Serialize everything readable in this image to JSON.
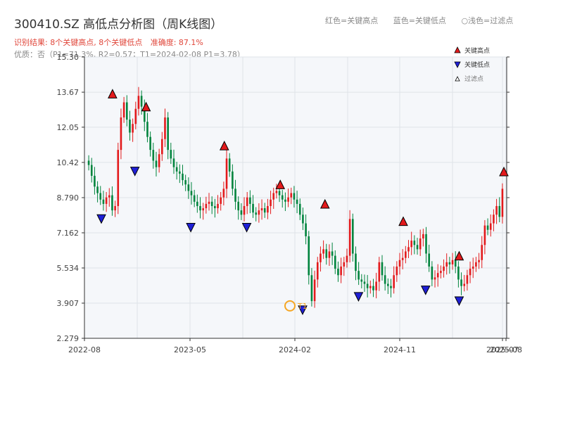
{
  "title": "300410.SZ 高低点分析图（周K线图）",
  "result_summary": "识别结果: 8个关键高点, 8个关键低点",
  "accuracy": "准确度: 87.1%",
  "quality_line": "优质：否（P1=71.3%, R2=0.57；T1=2024-02-08 P1=3.78）",
  "top_legend": {
    "red": "红色=关键高点",
    "blue": "蓝色=关键低点",
    "light": "○浅色=过滤点"
  },
  "colors": {
    "up": "#e31a1c",
    "down": "#00843d",
    "high_marker": "#e31a1c",
    "low_marker": "#1f1fd6",
    "t1_ring": "#f5a623",
    "grid": "#dfe3e8",
    "plot_bg": "#f5f7fa"
  },
  "chart_data": {
    "type": "candlestick",
    "y_ticks": [
      "2.279",
      "3.907",
      "5.534",
      "7.162",
      "8.790",
      "10.42",
      "12.05",
      "13.67",
      "15.30"
    ],
    "ylim": [
      2.279,
      15.3
    ],
    "x_ticks": [
      "2022-08",
      "2023-05",
      "2024-02",
      "2024-11",
      "2025-07",
      "2025-08"
    ],
    "legend": [
      "关键高点",
      "关键低点",
      "过滤点"
    ],
    "legend_position": "top-right",
    "grid": true,
    "t1_label": "T1",
    "approx_closes": [
      10.3,
      9.8,
      9.3,
      9.0,
      8.7,
      8.5,
      8.8,
      8.9,
      8.2,
      8.4,
      11.0,
      12.5,
      13.2,
      12.4,
      11.8,
      12.2,
      12.9,
      13.5,
      13.0,
      12.3,
      11.6,
      11.0,
      10.5,
      10.2,
      10.8,
      11.5,
      12.5,
      11.0,
      10.6,
      10.2,
      10.0,
      9.9,
      9.6,
      9.4,
      9.1,
      8.9,
      8.6,
      8.4,
      8.2,
      8.3,
      8.5,
      8.6,
      8.4,
      8.3,
      8.5,
      8.8,
      9.2,
      10.6,
      10.0,
      9.2,
      8.6,
      8.2,
      8.0,
      8.4,
      8.8,
      8.5,
      8.1,
      8.0,
      8.2,
      8.3,
      8.1,
      8.4,
      8.7,
      9.0,
      9.1,
      8.9,
      8.7,
      8.6,
      8.8,
      9.0,
      8.7,
      8.5,
      8.0,
      7.6,
      7.0,
      5.2,
      4.0,
      5.0,
      5.8,
      6.2,
      6.4,
      6.0,
      6.3,
      6.1,
      5.5,
      5.2,
      5.6,
      5.8,
      6.1,
      7.8,
      6.2,
      5.4,
      5.0,
      4.9,
      4.8,
      4.6,
      4.7,
      4.5,
      4.9,
      5.8,
      5.2,
      4.8,
      4.7,
      4.6,
      5.2,
      5.6,
      5.9,
      6.0,
      6.3,
      6.5,
      6.8,
      6.6,
      6.4,
      6.9,
      7.1,
      6.2,
      5.6,
      5.0,
      5.1,
      5.3,
      5.4,
      5.6,
      5.8,
      5.7,
      5.9,
      5.6,
      5.0,
      4.7,
      4.8,
      5.2,
      5.5,
      5.6,
      5.8,
      5.9,
      6.6,
      7.5,
      7.3,
      7.6,
      8.0,
      8.4,
      7.9,
      9.2
    ],
    "key_highs": [
      {
        "x": "2022-09",
        "value": 13.4
      },
      {
        "x": "2022-12",
        "value": 12.8
      },
      {
        "x": "2023-07",
        "value": 11.0
      },
      {
        "x": "2023-12",
        "value": 9.2
      },
      {
        "x": "2024-04",
        "value": 8.3
      },
      {
        "x": "2024-11",
        "value": 7.5
      },
      {
        "x": "2025-04",
        "value": 5.9
      },
      {
        "x": "2025-08",
        "value": 9.8
      }
    ],
    "key_lows": [
      {
        "x": "2022-08",
        "value": 8.0
      },
      {
        "x": "2022-11",
        "value": 10.2
      },
      {
        "x": "2023-04",
        "value": 7.6
      },
      {
        "x": "2023-09",
        "value": 7.6
      },
      {
        "x": "2024-02",
        "value": 3.78
      },
      {
        "x": "2024-07",
        "value": 4.4
      },
      {
        "x": "2025-01",
        "value": 4.7
      },
      {
        "x": "2025-04",
        "value": 4.2
      }
    ],
    "t1": {
      "x": "2024-02",
      "value": 3.78
    }
  }
}
